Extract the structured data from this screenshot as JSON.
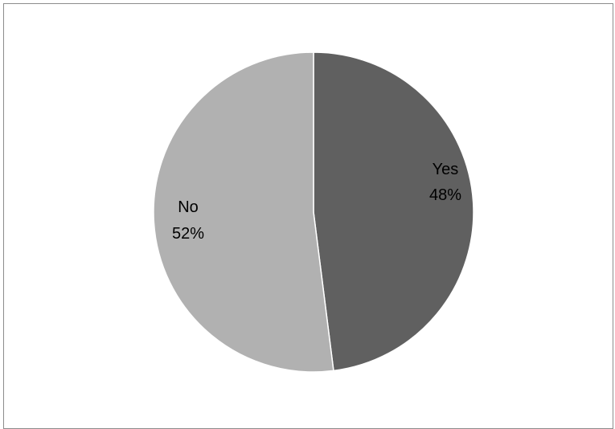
{
  "chart_data": {
    "type": "pie",
    "categories": [
      "Yes",
      "No"
    ],
    "values": [
      48,
      52
    ],
    "labels": {
      "Yes": {
        "name": "Yes",
        "percent": "48%"
      },
      "No": {
        "name": "No",
        "percent": "52%"
      }
    },
    "colors": {
      "Yes": "#606060",
      "No": "#b1b1b1",
      "border": "#ffffff"
    },
    "start_angle_deg": 0,
    "direction": "clockwise",
    "legend": "none"
  }
}
